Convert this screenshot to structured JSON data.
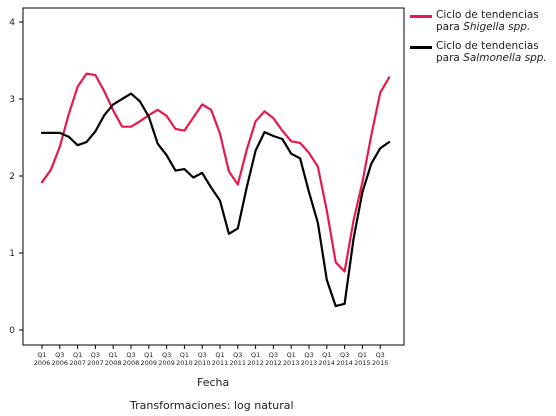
{
  "chart_data": {
    "type": "line",
    "xlabel": "Fecha",
    "ylabel": "",
    "ylim": [
      0,
      4
    ],
    "y_ticks": [
      "0",
      "1",
      "2",
      "3",
      "4"
    ],
    "x_tick_labels": [
      {
        "q": "Q1",
        "y": "2006"
      },
      {
        "q": "Q3",
        "y": "2006"
      },
      {
        "q": "Q1",
        "y": "2007"
      },
      {
        "q": "Q3",
        "y": "2007"
      },
      {
        "q": "Q1",
        "y": "2008"
      },
      {
        "q": "Q3",
        "y": "2008"
      },
      {
        "q": "Q1",
        "y": "2009"
      },
      {
        "q": "Q3",
        "y": "2009"
      },
      {
        "q": "Q1",
        "y": "2010"
      },
      {
        "q": "Q3",
        "y": "2010"
      },
      {
        "q": "Q1",
        "y": "2011"
      },
      {
        "q": "Q3",
        "y": "2011"
      },
      {
        "q": "Q1",
        "y": "2012"
      },
      {
        "q": "Q3",
        "y": "2012"
      },
      {
        "q": "Q1",
        "y": "2013"
      },
      {
        "q": "Q3",
        "y": "2013"
      },
      {
        "q": "Q1",
        "y": "2014"
      },
      {
        "q": "Q3",
        "y": "2014"
      },
      {
        "q": "Q1",
        "y": "2015"
      },
      {
        "q": "Q3",
        "y": "2015"
      }
    ],
    "x": [
      "2006 Q1",
      "2006 Q2",
      "2006 Q3",
      "2006 Q4",
      "2007 Q1",
      "2007 Q2",
      "2007 Q3",
      "2007 Q4",
      "2008 Q1",
      "2008 Q2",
      "2008 Q3",
      "2008 Q4",
      "2009 Q1",
      "2009 Q2",
      "2009 Q3",
      "2009 Q4",
      "2010 Q1",
      "2010 Q2",
      "2010 Q3",
      "2010 Q4",
      "2011 Q1",
      "2011 Q2",
      "2011 Q3",
      "2011 Q4",
      "2012 Q1",
      "2012 Q2",
      "2012 Q3",
      "2012 Q4",
      "2013 Q1",
      "2013 Q2",
      "2013 Q3",
      "2013 Q4",
      "2014 Q1",
      "2014 Q2",
      "2014 Q3",
      "2014 Q4",
      "2015 Q1",
      "2015 Q2",
      "2015 Q3",
      "2015 Q4"
    ],
    "series": [
      {
        "name_prefix": "Ciclo de tendencias",
        "name_line2": "para ",
        "name_italic": "Shigella spp.",
        "color": "#e8194a",
        "values": [
          1.92,
          2.08,
          2.38,
          2.8,
          3.16,
          3.33,
          3.31,
          3.1,
          2.85,
          2.64,
          2.64,
          2.71,
          2.79,
          2.86,
          2.78,
          2.61,
          2.59,
          2.76,
          2.93,
          2.86,
          2.55,
          2.06,
          1.89,
          2.34,
          2.71,
          2.84,
          2.75,
          2.59,
          2.45,
          2.43,
          2.3,
          2.12,
          1.55,
          0.88,
          0.76,
          1.42,
          1.92,
          2.53,
          3.08,
          3.28
        ]
      },
      {
        "name_prefix": "Ciclo de tendencias",
        "name_line2": "para ",
        "name_italic": "Salmonella spp.",
        "color": "#000000",
        "values": [
          2.56,
          2.56,
          2.56,
          2.51,
          2.4,
          2.44,
          2.58,
          2.79,
          2.93,
          3.0,
          3.07,
          2.97,
          2.77,
          2.42,
          2.27,
          2.07,
          2.09,
          1.98,
          2.04,
          1.85,
          1.68,
          1.25,
          1.32,
          1.85,
          2.33,
          2.57,
          2.52,
          2.48,
          2.29,
          2.23,
          1.79,
          1.39,
          0.65,
          0.31,
          0.34,
          1.18,
          1.79,
          2.16,
          2.36,
          2.44
        ]
      }
    ],
    "legend_position": "top-right",
    "grid": false
  },
  "footnote": "Transformaciones: log natural"
}
